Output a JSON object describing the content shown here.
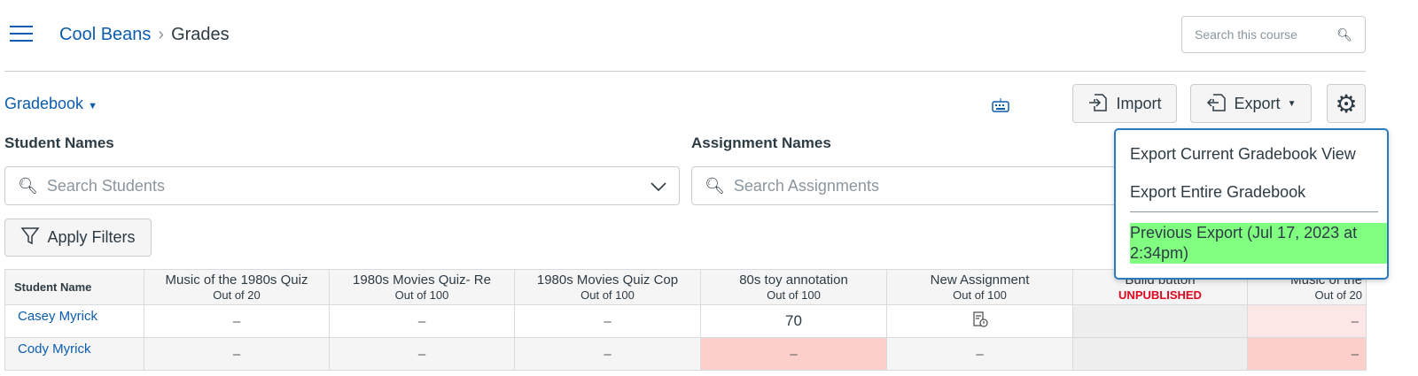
{
  "header": {
    "course": "Cool Beans",
    "separator": "›",
    "page": "Grades",
    "search_placeholder": "Search this course"
  },
  "toolbar": {
    "gradebook_label": "Gradebook",
    "import_label": "Import",
    "export_label": "Export"
  },
  "filters": {
    "student_names_label": "Student Names",
    "assignment_names_label": "Assignment Names",
    "search_students_placeholder": "Search Students",
    "search_assignments_placeholder": "Search Assignments",
    "apply_filters_label": "Apply Filters"
  },
  "export_menu": {
    "items": [
      "Export Current Gradebook View",
      "Export Entire Gradebook",
      "Previous Export (Jul 17, 2023 at 2:34pm)"
    ],
    "highlight_color": "#80ff80"
  },
  "table": {
    "student_header": "Student Name",
    "columns": [
      {
        "title": "Music of the 1980s Quiz",
        "sub": "Out of 20"
      },
      {
        "title": "1980s Movies Quiz- Re",
        "sub": "Out of 100"
      },
      {
        "title": "1980s Movies Quiz Cop",
        "sub": "Out of 100"
      },
      {
        "title": "80s toy annotation",
        "sub": "Out of 100"
      },
      {
        "title": "New Assignment",
        "sub": "Out of 100"
      },
      {
        "title": "Build button",
        "sub": "UNPUBLISHED"
      },
      {
        "title": "Music of the",
        "sub": "Out of 20"
      }
    ],
    "rows": [
      {
        "name": "Casey Myrick",
        "cells": [
          "–",
          "–",
          "–",
          "70",
          "",
          "",
          "–"
        ]
      },
      {
        "name": "Cody Myrick",
        "cells": [
          "–",
          "–",
          "–",
          "–",
          "–",
          "",
          "–"
        ]
      }
    ]
  }
}
